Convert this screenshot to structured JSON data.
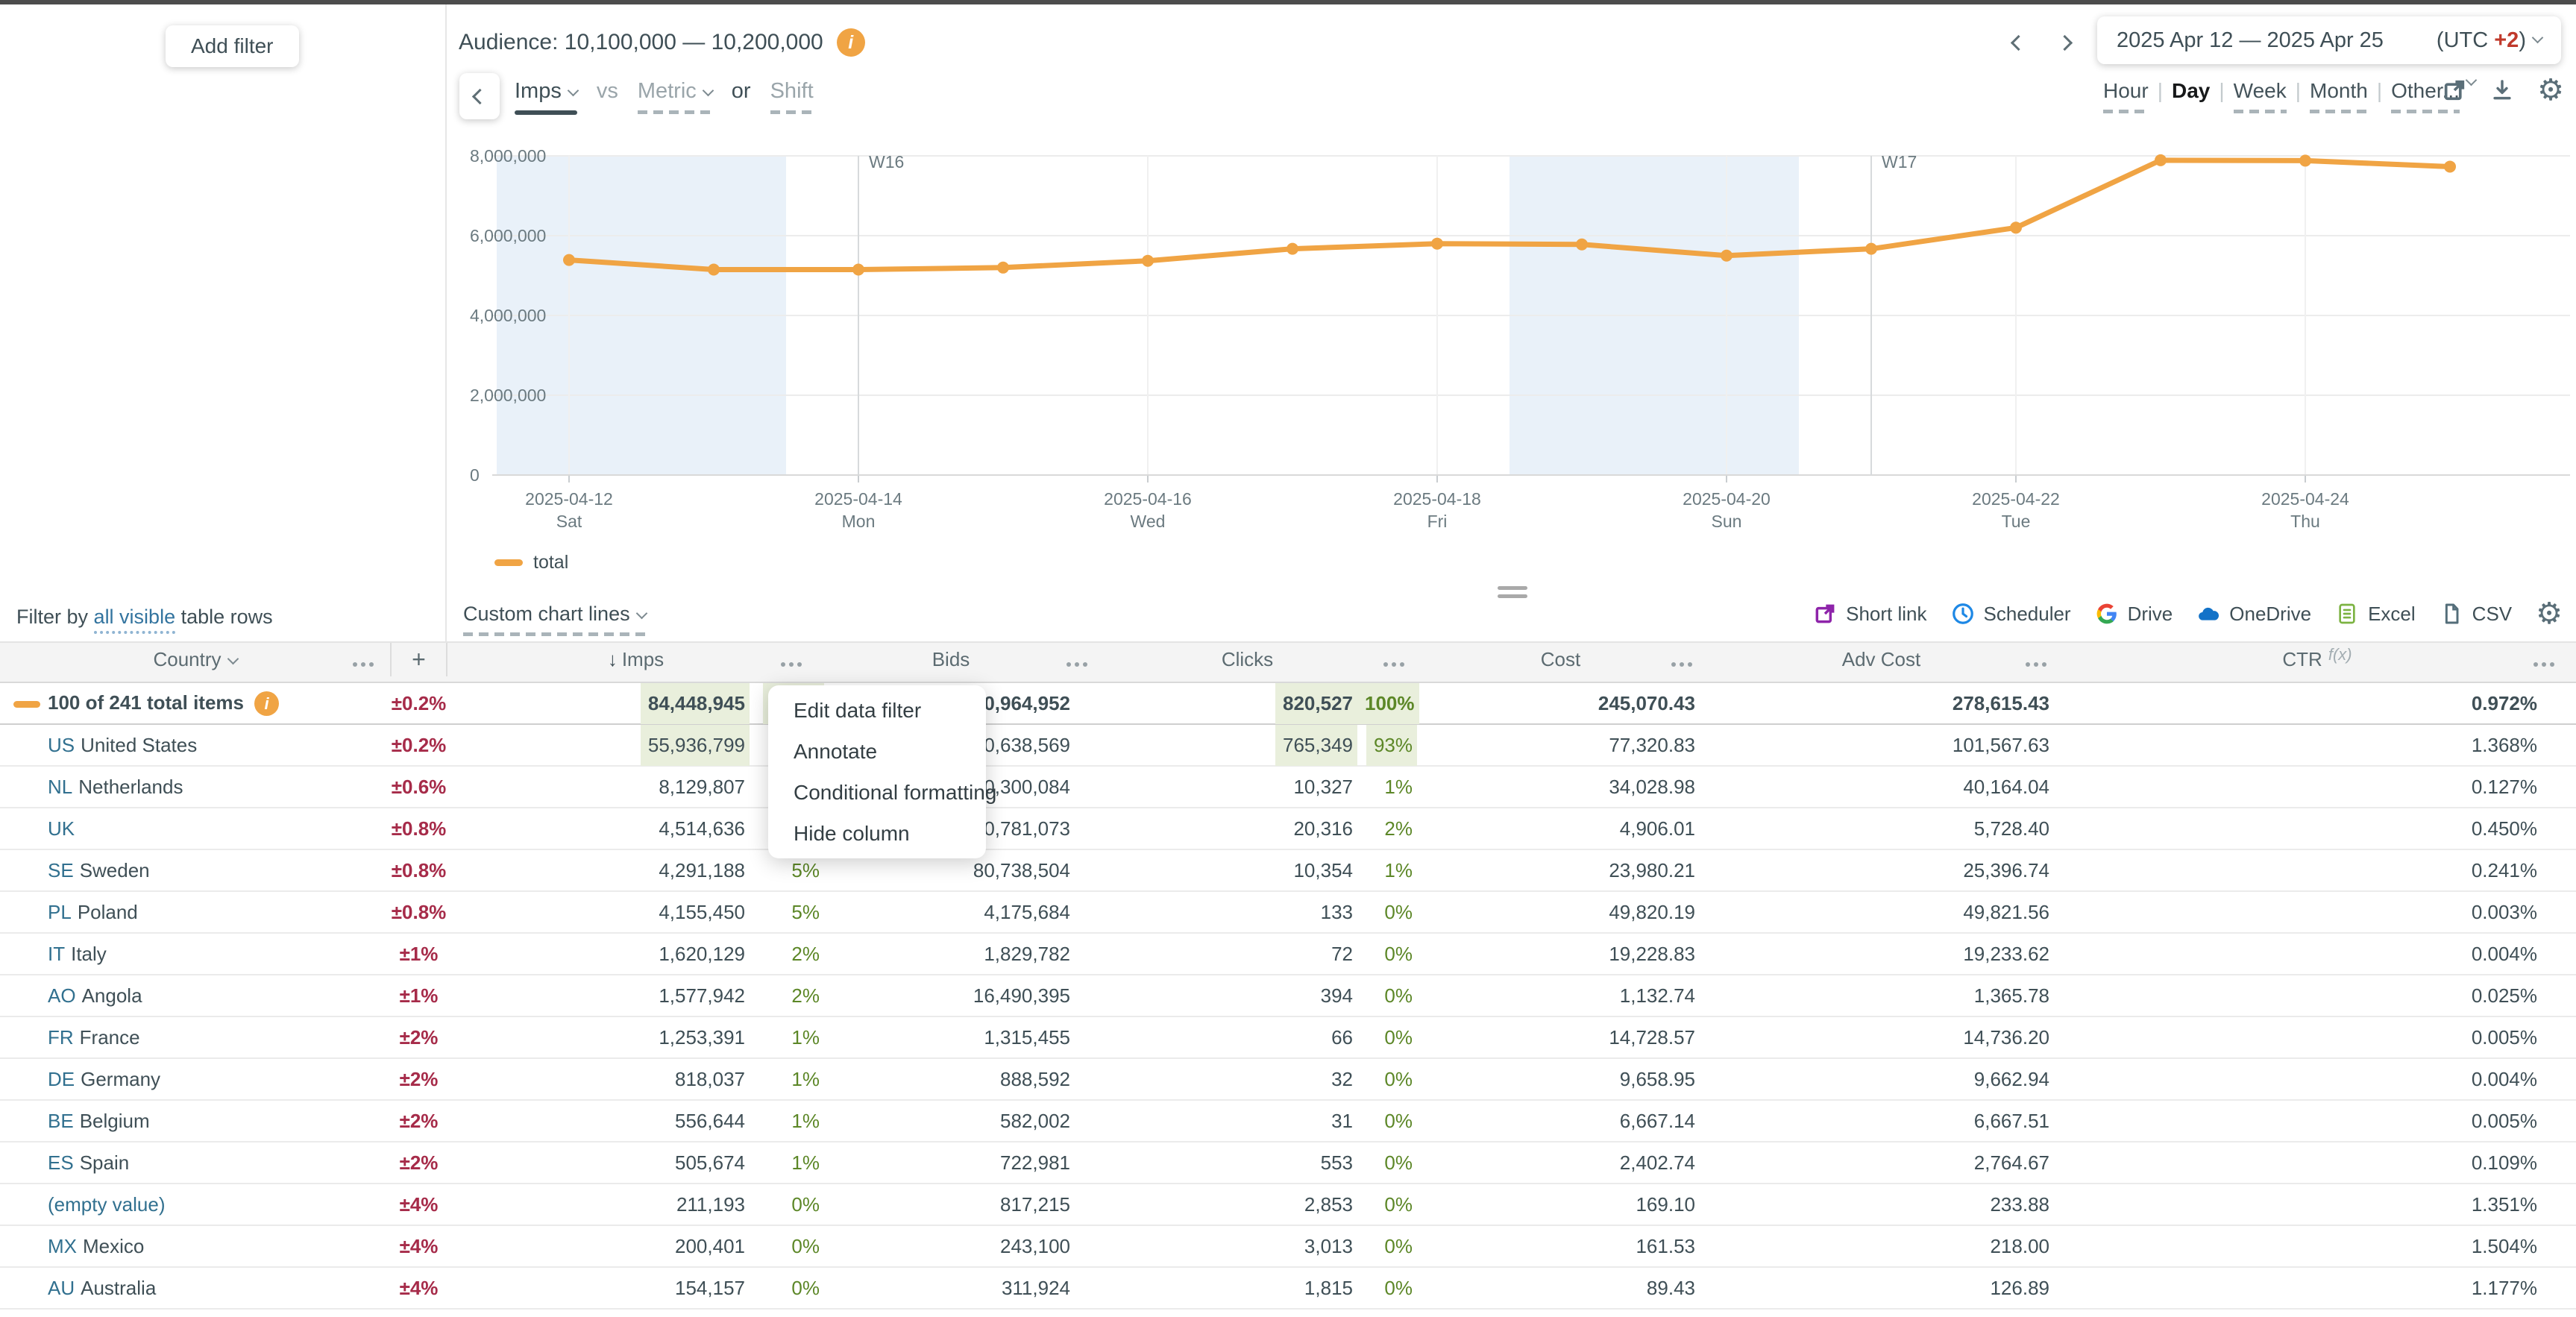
{
  "topbar": {
    "add_filter": "Add filter",
    "audience_label": "Audience: 10,100,000 — 10,200,000",
    "date_range": "2025 Apr 12 — 2025 Apr 25",
    "utc_prefix": "(UTC ",
    "utc_value": "+2",
    "utc_suffix": ")"
  },
  "chart_controls": {
    "primary_metric": "Imps",
    "vs_label": "vs",
    "secondary_metric": "Metric",
    "or_label": "or",
    "shift_label": "Shift",
    "granularity": [
      "Hour",
      "Day",
      "Week",
      "Month",
      "Other..."
    ],
    "granularity_selected": "Day"
  },
  "chart_data": {
    "type": "line",
    "title": "",
    "xlabel": "",
    "ylabel": "",
    "x": [
      "2025-04-12",
      "2025-04-13",
      "2025-04-14",
      "2025-04-15",
      "2025-04-16",
      "2025-04-17",
      "2025-04-18",
      "2025-04-19",
      "2025-04-20",
      "2025-04-21",
      "2025-04-22",
      "2025-04-23",
      "2025-04-24",
      "2025-04-25"
    ],
    "series": [
      {
        "name": "total",
        "color": "#f0a444",
        "values": [
          5390000,
          5150000,
          5150000,
          5200000,
          5370000,
          5670000,
          5800000,
          5780000,
          5500000,
          5670000,
          6200000,
          7890000,
          7880000,
          7730000
        ]
      }
    ],
    "ylim": [
      0,
      8000000
    ],
    "yticks": [
      0,
      2000000,
      4000000,
      6000000,
      8000000
    ],
    "xtick_indices": [
      0,
      2,
      4,
      6,
      8,
      10,
      12
    ],
    "xtick_labels": [
      {
        "date": "2025-04-12",
        "day": "Sat"
      },
      {
        "date": "2025-04-14",
        "day": "Mon"
      },
      {
        "date": "2025-04-16",
        "day": "Wed"
      },
      {
        "date": "2025-04-18",
        "day": "Fri"
      },
      {
        "date": "2025-04-20",
        "day": "Sun"
      },
      {
        "date": "2025-04-22",
        "day": "Tue"
      },
      {
        "date": "2025-04-24",
        "day": "Thu"
      }
    ],
    "week_markers": [
      {
        "label": "W16",
        "index": 2
      },
      {
        "label": "W17",
        "index": 9
      }
    ],
    "weekend_bands": [
      [
        0,
        1
      ],
      [
        7,
        8
      ]
    ],
    "weekend_band_color": "#e9f1f9",
    "grid": true,
    "legend": [
      "total"
    ],
    "legend_position": "bottom-left"
  },
  "toolbar": {
    "filter_by_prefix": "Filter by",
    "filter_by_link": "all visible",
    "filter_by_suffix": "table rows",
    "custom_chart_lines": "Custom chart lines",
    "actions": [
      {
        "label": "Short link",
        "icon": "external-link-icon",
        "color": "#8e24aa"
      },
      {
        "label": "Scheduler",
        "icon": "clock-icon",
        "color": "#1e88e5"
      },
      {
        "label": "Drive",
        "icon": "google-drive-icon",
        "color": ""
      },
      {
        "label": "OneDrive",
        "icon": "onedrive-icon",
        "color": "#1272c8"
      },
      {
        "label": "Excel",
        "icon": "excel-icon",
        "color": "#7cb342"
      },
      {
        "label": "CSV",
        "icon": "csv-file-icon",
        "color": "#546e7a"
      }
    ]
  },
  "context_menu": {
    "items": [
      "Edit data filter",
      "Annotate",
      "Conditional formatting",
      "Hide column"
    ]
  },
  "table": {
    "headers": {
      "country": "Country",
      "add": "+",
      "sort": "↓",
      "imps": "Imps",
      "bids": "Bids",
      "clicks": "Clicks",
      "cost": "Cost",
      "adv_cost": "Adv Cost",
      "ctr": "CTR",
      "fx": "f(x)"
    },
    "rows": [
      {
        "code": "",
        "name": "100 of 241 total items",
        "pm": "±0.2%",
        "imps": "84,448,945",
        "imps_pct": "100%",
        "bids": "440,964,952",
        "clicks": "820,527",
        "clicks_pct": "100%",
        "cost": "245,070.43",
        "adv_cost": "278,615.43",
        "ctr": "0.972%",
        "is_total": true,
        "highlight": true
      },
      {
        "code": "US",
        "name": "United States",
        "pm": "±0.2%",
        "imps": "55,936,799",
        "imps_pct": "",
        "bids": "270,638,569",
        "clicks": "765,349",
        "clicks_pct": "93%",
        "cost": "77,320.83",
        "adv_cost": "101,567.63",
        "ctr": "1.368%",
        "is_total": false,
        "highlight": true
      },
      {
        "code": "NL",
        "name": "Netherlands",
        "pm": "±0.6%",
        "imps": "8,129,807",
        "imps_pct": "",
        "bids": "40,300,084",
        "clicks": "10,327",
        "clicks_pct": "1%",
        "cost": "34,028.98",
        "adv_cost": "40,164.04",
        "ctr": "0.127%",
        "is_total": false,
        "highlight": false
      },
      {
        "code": "UK",
        "name": "",
        "pm": "±0.8%",
        "imps": "4,514,636",
        "imps_pct": "",
        "bids": "20,781,073",
        "clicks": "20,316",
        "clicks_pct": "2%",
        "cost": "4,906.01",
        "adv_cost": "5,728.40",
        "ctr": "0.450%",
        "is_total": false,
        "highlight": false
      },
      {
        "code": "SE",
        "name": "Sweden",
        "pm": "±0.8%",
        "imps": "4,291,188",
        "imps_pct": "5%",
        "bids": "80,738,504",
        "clicks": "10,354",
        "clicks_pct": "1%",
        "cost": "23,980.21",
        "adv_cost": "25,396.74",
        "ctr": "0.241%",
        "is_total": false,
        "highlight": false
      },
      {
        "code": "PL",
        "name": "Poland",
        "pm": "±0.8%",
        "imps": "4,155,450",
        "imps_pct": "5%",
        "bids": "4,175,684",
        "clicks": "133",
        "clicks_pct": "0%",
        "cost": "49,820.19",
        "adv_cost": "49,821.56",
        "ctr": "0.003%",
        "is_total": false,
        "highlight": false
      },
      {
        "code": "IT",
        "name": "Italy",
        "pm": "±1%",
        "imps": "1,620,129",
        "imps_pct": "2%",
        "bids": "1,829,782",
        "clicks": "72",
        "clicks_pct": "0%",
        "cost": "19,228.83",
        "adv_cost": "19,233.62",
        "ctr": "0.004%",
        "is_total": false,
        "highlight": false
      },
      {
        "code": "AO",
        "name": "Angola",
        "pm": "±1%",
        "imps": "1,577,942",
        "imps_pct": "2%",
        "bids": "16,490,395",
        "clicks": "394",
        "clicks_pct": "0%",
        "cost": "1,132.74",
        "adv_cost": "1,365.78",
        "ctr": "0.025%",
        "is_total": false,
        "highlight": false
      },
      {
        "code": "FR",
        "name": "France",
        "pm": "±2%",
        "imps": "1,253,391",
        "imps_pct": "1%",
        "bids": "1,315,455",
        "clicks": "66",
        "clicks_pct": "0%",
        "cost": "14,728.57",
        "adv_cost": "14,736.20",
        "ctr": "0.005%",
        "is_total": false,
        "highlight": false
      },
      {
        "code": "DE",
        "name": "Germany",
        "pm": "±2%",
        "imps": "818,037",
        "imps_pct": "1%",
        "bids": "888,592",
        "clicks": "32",
        "clicks_pct": "0%",
        "cost": "9,658.95",
        "adv_cost": "9,662.94",
        "ctr": "0.004%",
        "is_total": false,
        "highlight": false
      },
      {
        "code": "BE",
        "name": "Belgium",
        "pm": "±2%",
        "imps": "556,644",
        "imps_pct": "1%",
        "bids": "582,002",
        "clicks": "31",
        "clicks_pct": "0%",
        "cost": "6,667.14",
        "adv_cost": "6,667.51",
        "ctr": "0.005%",
        "is_total": false,
        "highlight": false
      },
      {
        "code": "ES",
        "name": "Spain",
        "pm": "±2%",
        "imps": "505,674",
        "imps_pct": "1%",
        "bids": "722,981",
        "clicks": "553",
        "clicks_pct": "0%",
        "cost": "2,402.74",
        "adv_cost": "2,764.67",
        "ctr": "0.109%",
        "is_total": false,
        "highlight": false
      },
      {
        "code": "",
        "name": "(empty value)",
        "pm": "±4%",
        "imps": "211,193",
        "imps_pct": "0%",
        "bids": "817,215",
        "clicks": "2,853",
        "clicks_pct": "0%",
        "cost": "169.10",
        "adv_cost": "233.88",
        "ctr": "1.351%",
        "is_total": false,
        "highlight": false
      },
      {
        "code": "MX",
        "name": "Mexico",
        "pm": "±4%",
        "imps": "200,401",
        "imps_pct": "0%",
        "bids": "243,100",
        "clicks": "3,013",
        "clicks_pct": "0%",
        "cost": "161.53",
        "adv_cost": "218.00",
        "ctr": "1.504%",
        "is_total": false,
        "highlight": false
      },
      {
        "code": "AU",
        "name": "Australia",
        "pm": "±4%",
        "imps": "154,157",
        "imps_pct": "0%",
        "bids": "311,924",
        "clicks": "1,815",
        "clicks_pct": "0%",
        "cost": "89.43",
        "adv_cost": "126.89",
        "ctr": "1.177%",
        "is_total": false,
        "highlight": false
      }
    ]
  }
}
